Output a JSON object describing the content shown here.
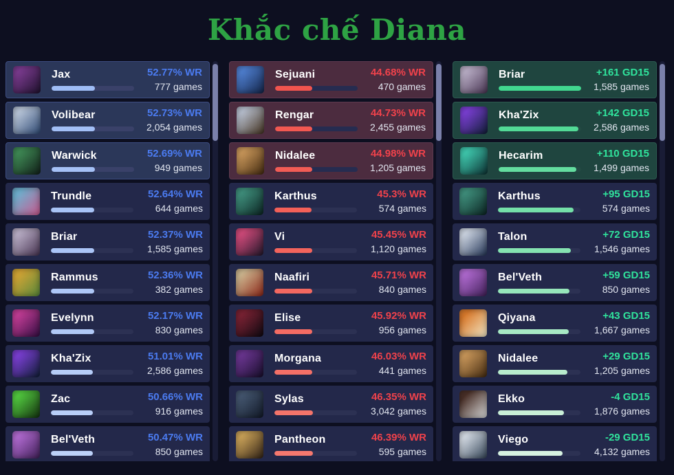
{
  "title": "Khắc chế Diana",
  "title_color": "#2ea344",
  "scrollbar": {
    "thumb_color": "#7a80aa",
    "track_color": "#191c36"
  },
  "columns": [
    {
      "id": "best-winrate-counters",
      "metric": "WR",
      "accent": "#4b7bf0",
      "row_bg": "#23284a",
      "row_track": "#2c3153",
      "highlight_bg": "#2b3759",
      "highlight_border": "#3d4d82",
      "highlight_track": "#3a4169",
      "rows": [
        {
          "champion": "Jax",
          "value": "52.77% WR",
          "games": "777 games",
          "bar_pct": 52.8,
          "bar_color": "#9fbdf6",
          "highlighted": true,
          "icon_colors": [
            "#7b3b8f",
            "#241433"
          ]
        },
        {
          "champion": "Volibear",
          "value": "52.73% WR",
          "games": "2,054 games",
          "bar_pct": 52.7,
          "bar_color": "#a2bff6",
          "highlighted": true,
          "icon_colors": [
            "#b9c6d9",
            "#37517a"
          ]
        },
        {
          "champion": "Warwick",
          "value": "52.69% WR",
          "games": "949 games",
          "bar_pct": 52.7,
          "bar_color": "#a5c1f6",
          "highlighted": true,
          "icon_colors": [
            "#3f8a55",
            "#14251c"
          ]
        },
        {
          "champion": "Trundle",
          "value": "52.64% WR",
          "games": "644 games",
          "bar_pct": 52.6,
          "bar_color": "#a8c3f6",
          "highlighted": false,
          "icon_colors": [
            "#6fb0cf",
            "#c45f93"
          ]
        },
        {
          "champion": "Briar",
          "value": "52.37% WR",
          "games": "1,585 games",
          "bar_pct": 52.4,
          "bar_color": "#abc5f7",
          "highlighted": false,
          "icon_colors": [
            "#b9aec6",
            "#4e3b58"
          ]
        },
        {
          "champion": "Rammus",
          "value": "52.36% WR",
          "games": "382 games",
          "bar_pct": 52.4,
          "bar_color": "#aec7f7",
          "highlighted": false,
          "icon_colors": [
            "#d2a435",
            "#5f8a3a"
          ]
        },
        {
          "champion": "Evelynn",
          "value": "52.17% WR",
          "games": "830 games",
          "bar_pct": 52.2,
          "bar_color": "#b1c9f7",
          "highlighted": false,
          "icon_colors": [
            "#c23d95",
            "#3c1047"
          ]
        },
        {
          "champion": "Kha'Zix",
          "value": "51.01% WR",
          "games": "2,586 games",
          "bar_pct": 51.0,
          "bar_color": "#b5ccf7",
          "highlighted": false,
          "icon_colors": [
            "#7b3fd4",
            "#16203f"
          ]
        },
        {
          "champion": "Zac",
          "value": "50.66% WR",
          "games": "916 games",
          "bar_pct": 50.7,
          "bar_color": "#b8cef8",
          "highlighted": false,
          "icon_colors": [
            "#52c93f",
            "#173a12"
          ]
        },
        {
          "champion": "Bel'Veth",
          "value": "50.47% WR",
          "games": "850 games",
          "bar_pct": 50.5,
          "bar_color": "#bcd1f8",
          "highlighted": false,
          "icon_colors": [
            "#b06ad0",
            "#47245f"
          ]
        }
      ]
    },
    {
      "id": "worst-winrate-matchups",
      "metric": "WR",
      "accent": "#f0424b",
      "row_bg": "#23284a",
      "row_track": "#2c3153",
      "highlight_bg": "#4c2c3f",
      "highlight_border": "#5e3a50",
      "highlight_track": "#262c50",
      "rows": [
        {
          "champion": "Sejuani",
          "value": "44.68% WR",
          "games": "470 games",
          "bar_pct": 44.7,
          "bar_color": "#f2544e",
          "highlighted": true,
          "icon_colors": [
            "#4f7fd0",
            "#16294f"
          ]
        },
        {
          "champion": "Rengar",
          "value": "44.73% WR",
          "games": "2,455 games",
          "bar_pct": 44.7,
          "bar_color": "#f25851",
          "highlighted": true,
          "icon_colors": [
            "#b7bfce",
            "#4a3a2a"
          ]
        },
        {
          "champion": "Nidalee",
          "value": "44.98% WR",
          "games": "1,205 games",
          "bar_pct": 45.0,
          "bar_color": "#f25c55",
          "highlighted": true,
          "icon_colors": [
            "#c9975a",
            "#4a3014"
          ]
        },
        {
          "champion": "Karthus",
          "value": "45.3% WR",
          "games": "574 games",
          "bar_pct": 45.3,
          "bar_color": "#f36058",
          "highlighted": false,
          "icon_colors": [
            "#3f8f7c",
            "#0e2a27"
          ]
        },
        {
          "champion": "Vi",
          "value": "45.45% WR",
          "games": "1,120 games",
          "bar_pct": 45.5,
          "bar_color": "#f3645c",
          "highlighted": false,
          "icon_colors": [
            "#d04a7a",
            "#2a1a2e"
          ]
        },
        {
          "champion": "Naafiri",
          "value": "45.71% WR",
          "games": "840 games",
          "bar_pct": 45.7,
          "bar_color": "#f36860",
          "highlighted": false,
          "icon_colors": [
            "#cdb68f",
            "#8f2f1f"
          ]
        },
        {
          "champion": "Elise",
          "value": "45.92% WR",
          "games": "956 games",
          "bar_pct": 45.9,
          "bar_color": "#f46c63",
          "highlighted": false,
          "icon_colors": [
            "#7a2233",
            "#140a12"
          ]
        },
        {
          "champion": "Morgana",
          "value": "46.03% WR",
          "games": "441 games",
          "bar_pct": 46.0,
          "bar_color": "#f47067",
          "highlighted": false,
          "icon_colors": [
            "#6a3590",
            "#1c1030"
          ]
        },
        {
          "champion": "Sylas",
          "value": "46.35% WR",
          "games": "3,042 games",
          "bar_pct": 46.4,
          "bar_color": "#f4746a",
          "highlighted": false,
          "icon_colors": [
            "#44566f",
            "#141c2b"
          ]
        },
        {
          "champion": "Pantheon",
          "value": "46.39% WR",
          "games": "595 games",
          "bar_pct": 46.4,
          "bar_color": "#f5786e",
          "highlighted": false,
          "icon_colors": [
            "#caa258",
            "#3a2a1a"
          ]
        }
      ]
    },
    {
      "id": "gold-diff-15",
      "metric": "GD15",
      "accent": "#30e39c",
      "row_bg": "#23284a",
      "row_track": "#2c3153",
      "highlight_bg": "#1f453f",
      "highlight_border": "#2c5a50",
      "highlight_track": "#234a43",
      "rows": [
        {
          "champion": "Briar",
          "value": "+161 GD15",
          "games": "1,585 games",
          "bar_pct": 100,
          "bar_color": "#41d78f",
          "highlighted": true,
          "icon_colors": [
            "#b9aec6",
            "#4e3b58"
          ]
        },
        {
          "champion": "Kha'Zix",
          "value": "+142 GD15",
          "games": "2,586 games",
          "bar_pct": 97,
          "bar_color": "#52da96",
          "highlighted": true,
          "icon_colors": [
            "#7b3fd4",
            "#16203f"
          ]
        },
        {
          "champion": "Hecarim",
          "value": "+110 GD15",
          "games": "1,499 games",
          "bar_pct": 94,
          "bar_color": "#63dd9f",
          "highlighted": true,
          "icon_colors": [
            "#3fc9ae",
            "#103a3a"
          ]
        },
        {
          "champion": "Karthus",
          "value": "+95 GD15",
          "games": "574 games",
          "bar_pct": 92,
          "bar_color": "#74e0a8",
          "highlighted": false,
          "icon_colors": [
            "#3f8f7c",
            "#0e2a27"
          ]
        },
        {
          "champion": "Talon",
          "value": "+72 GD15",
          "games": "1,546 games",
          "bar_pct": 88,
          "bar_color": "#85e3b1",
          "highlighted": false,
          "icon_colors": [
            "#cdd5e2",
            "#2d3e5e"
          ]
        },
        {
          "champion": "Bel'Veth",
          "value": "+59 GD15",
          "games": "850 games",
          "bar_pct": 87,
          "bar_color": "#96e6ba",
          "highlighted": false,
          "icon_colors": [
            "#b06ad0",
            "#47245f"
          ]
        },
        {
          "champion": "Qiyana",
          "value": "+43 GD15",
          "games": "1,667 games",
          "bar_pct": 86,
          "bar_color": "#a7e9c4",
          "highlighted": false,
          "icon_colors": [
            "#d97a2c",
            "#f0e0bc"
          ]
        },
        {
          "champion": "Nidalee",
          "value": "+29 GD15",
          "games": "1,205 games",
          "bar_pct": 84,
          "bar_color": "#b8eccd",
          "highlighted": false,
          "icon_colors": [
            "#c9975a",
            "#4a3014"
          ]
        },
        {
          "champion": "Ekko",
          "value": "-4 GD15",
          "games": "1,876 games",
          "bar_pct": 80,
          "bar_color": "#c9efd7",
          "highlighted": false,
          "icon_colors": [
            "#4a3028",
            "#cfcfcf"
          ]
        },
        {
          "champion": "Viego",
          "value": "-29 GD15",
          "games": "4,132 games",
          "bar_pct": 78,
          "bar_color": "#d6f2e1",
          "highlighted": false,
          "icon_colors": [
            "#d4dbe4",
            "#3c4c5e"
          ]
        }
      ]
    }
  ]
}
